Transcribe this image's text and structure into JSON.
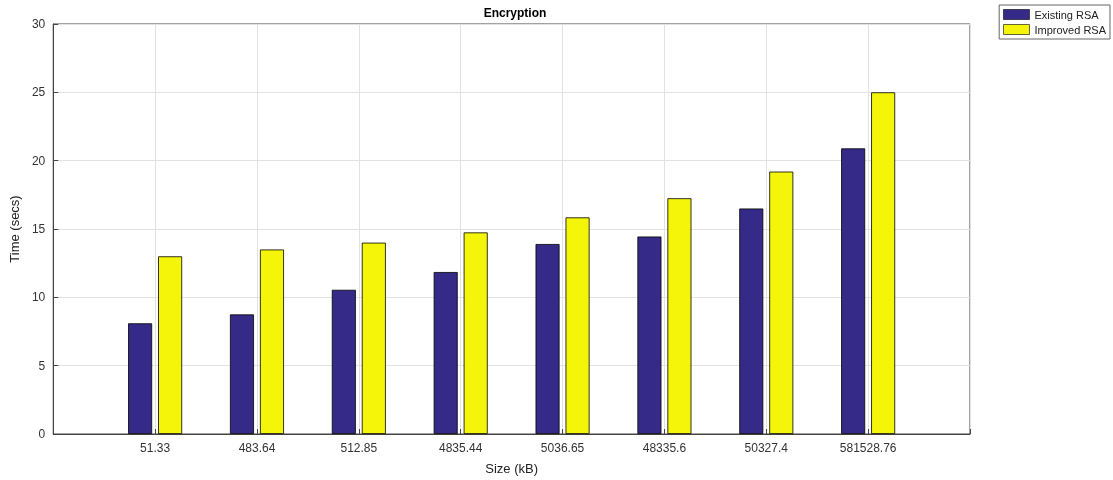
{
  "chart_data": {
    "type": "bar",
    "title": "Encryption",
    "xlabel": "Size (kB)",
    "ylabel": "Time (secs)",
    "categories": [
      "51.33",
      "483.64",
      "512.85",
      "4835.44",
      "5036.65",
      "48335.6",
      "50327.4",
      "581528.76"
    ],
    "series": [
      {
        "name": "Existing RSA",
        "color": "#352a87",
        "values": [
          8.1,
          8.75,
          10.55,
          11.85,
          13.9,
          14.45,
          16.5,
          20.9
        ]
      },
      {
        "name": "Improved RSA",
        "color": "#f5f50a",
        "values": [
          13.0,
          13.5,
          14.0,
          14.75,
          15.85,
          17.25,
          19.2,
          25.0
        ]
      }
    ],
    "ylim": [
      0,
      30
    ],
    "yticks": [
      0,
      5,
      10,
      15,
      20,
      25,
      30
    ],
    "grid": true,
    "legend": "top right"
  }
}
